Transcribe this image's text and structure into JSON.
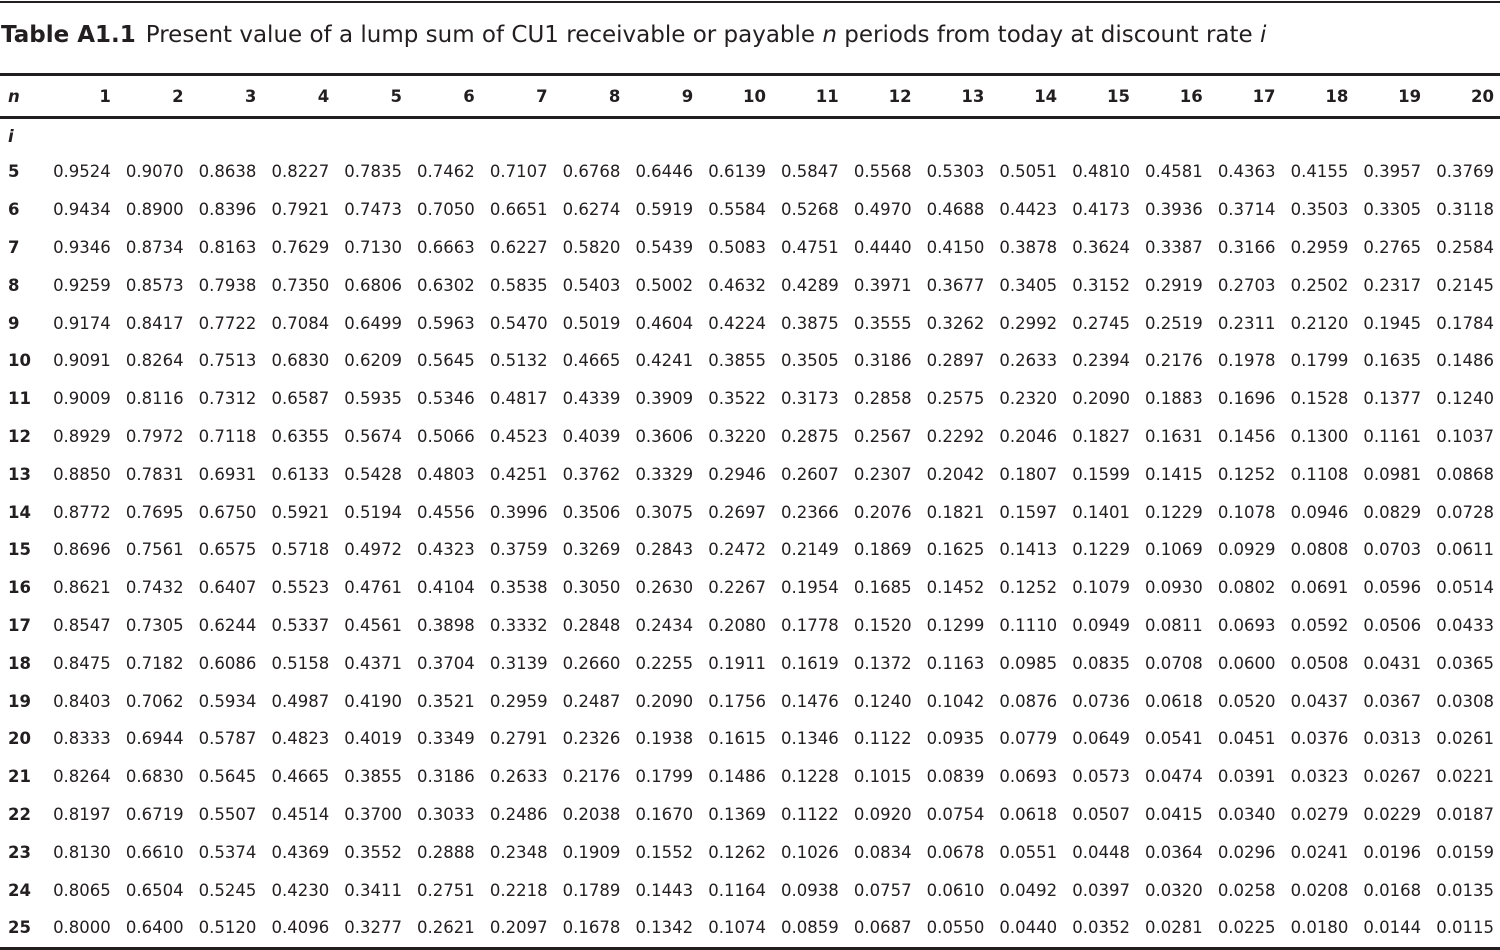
{
  "caption": {
    "label": "Table A1.1",
    "text_before_n": "Present value of a lump sum of CU1 receivable or payable ",
    "n_symbol": "n",
    "text_after_n": " periods from today at discount rate ",
    "i_symbol": "i"
  },
  "header": {
    "n_label": "n",
    "i_label": "i",
    "periods": [
      "1",
      "2",
      "3",
      "4",
      "5",
      "6",
      "7",
      "8",
      "9",
      "10",
      "11",
      "12",
      "13",
      "14",
      "15",
      "16",
      "17",
      "18",
      "19",
      "20"
    ]
  },
  "rows": [
    {
      "rate": "5",
      "values": [
        "0.9524",
        "0.9070",
        "0.8638",
        "0.8227",
        "0.7835",
        "0.7462",
        "0.7107",
        "0.6768",
        "0.6446",
        "0.6139",
        "0.5847",
        "0.5568",
        "0.5303",
        "0.5051",
        "0.4810",
        "0.4581",
        "0.4363",
        "0.4155",
        "0.3957",
        "0.3769"
      ]
    },
    {
      "rate": "6",
      "values": [
        "0.9434",
        "0.8900",
        "0.8396",
        "0.7921",
        "0.7473",
        "0.7050",
        "0.6651",
        "0.6274",
        "0.5919",
        "0.5584",
        "0.5268",
        "0.4970",
        "0.4688",
        "0.4423",
        "0.4173",
        "0.3936",
        "0.3714",
        "0.3503",
        "0.3305",
        "0.3118"
      ]
    },
    {
      "rate": "7",
      "values": [
        "0.9346",
        "0.8734",
        "0.8163",
        "0.7629",
        "0.7130",
        "0.6663",
        "0.6227",
        "0.5820",
        "0.5439",
        "0.5083",
        "0.4751",
        "0.4440",
        "0.4150",
        "0.3878",
        "0.3624",
        "0.3387",
        "0.3166",
        "0.2959",
        "0.2765",
        "0.2584"
      ]
    },
    {
      "rate": "8",
      "values": [
        "0.9259",
        "0.8573",
        "0.7938",
        "0.7350",
        "0.6806",
        "0.6302",
        "0.5835",
        "0.5403",
        "0.5002",
        "0.4632",
        "0.4289",
        "0.3971",
        "0.3677",
        "0.3405",
        "0.3152",
        "0.2919",
        "0.2703",
        "0.2502",
        "0.2317",
        "0.2145"
      ]
    },
    {
      "rate": "9",
      "values": [
        "0.9174",
        "0.8417",
        "0.7722",
        "0.7084",
        "0.6499",
        "0.5963",
        "0.5470",
        "0.5019",
        "0.4604",
        "0.4224",
        "0.3875",
        "0.3555",
        "0.3262",
        "0.2992",
        "0.2745",
        "0.2519",
        "0.2311",
        "0.2120",
        "0.1945",
        "0.1784"
      ]
    },
    {
      "rate": "10",
      "values": [
        "0.9091",
        "0.8264",
        "0.7513",
        "0.6830",
        "0.6209",
        "0.5645",
        "0.5132",
        "0.4665",
        "0.4241",
        "0.3855",
        "0.3505",
        "0.3186",
        "0.2897",
        "0.2633",
        "0.2394",
        "0.2176",
        "0.1978",
        "0.1799",
        "0.1635",
        "0.1486"
      ]
    },
    {
      "rate": "11",
      "values": [
        "0.9009",
        "0.8116",
        "0.7312",
        "0.6587",
        "0.5935",
        "0.5346",
        "0.4817",
        "0.4339",
        "0.3909",
        "0.3522",
        "0.3173",
        "0.2858",
        "0.2575",
        "0.2320",
        "0.2090",
        "0.1883",
        "0.1696",
        "0.1528",
        "0.1377",
        "0.1240"
      ]
    },
    {
      "rate": "12",
      "values": [
        "0.8929",
        "0.7972",
        "0.7118",
        "0.6355",
        "0.5674",
        "0.5066",
        "0.4523",
        "0.4039",
        "0.3606",
        "0.3220",
        "0.2875",
        "0.2567",
        "0.2292",
        "0.2046",
        "0.1827",
        "0.1631",
        "0.1456",
        "0.1300",
        "0.1161",
        "0.1037"
      ]
    },
    {
      "rate": "13",
      "values": [
        "0.8850",
        "0.7831",
        "0.6931",
        "0.6133",
        "0.5428",
        "0.4803",
        "0.4251",
        "0.3762",
        "0.3329",
        "0.2946",
        "0.2607",
        "0.2307",
        "0.2042",
        "0.1807",
        "0.1599",
        "0.1415",
        "0.1252",
        "0.1108",
        "0.0981",
        "0.0868"
      ]
    },
    {
      "rate": "14",
      "values": [
        "0.8772",
        "0.7695",
        "0.6750",
        "0.5921",
        "0.5194",
        "0.4556",
        "0.3996",
        "0.3506",
        "0.3075",
        "0.2697",
        "0.2366",
        "0.2076",
        "0.1821",
        "0.1597",
        "0.1401",
        "0.1229",
        "0.1078",
        "0.0946",
        "0.0829",
        "0.0728"
      ]
    },
    {
      "rate": "15",
      "values": [
        "0.8696",
        "0.7561",
        "0.6575",
        "0.5718",
        "0.4972",
        "0.4323",
        "0.3759",
        "0.3269",
        "0.2843",
        "0.2472",
        "0.2149",
        "0.1869",
        "0.1625",
        "0.1413",
        "0.1229",
        "0.1069",
        "0.0929",
        "0.0808",
        "0.0703",
        "0.0611"
      ]
    },
    {
      "rate": "16",
      "values": [
        "0.8621",
        "0.7432",
        "0.6407",
        "0.5523",
        "0.4761",
        "0.4104",
        "0.3538",
        "0.3050",
        "0.2630",
        "0.2267",
        "0.1954",
        "0.1685",
        "0.1452",
        "0.1252",
        "0.1079",
        "0.0930",
        "0.0802",
        "0.0691",
        "0.0596",
        "0.0514"
      ]
    },
    {
      "rate": "17",
      "values": [
        "0.8547",
        "0.7305",
        "0.6244",
        "0.5337",
        "0.4561",
        "0.3898",
        "0.3332",
        "0.2848",
        "0.2434",
        "0.2080",
        "0.1778",
        "0.1520",
        "0.1299",
        "0.1110",
        "0.0949",
        "0.0811",
        "0.0693",
        "0.0592",
        "0.0506",
        "0.0433"
      ]
    },
    {
      "rate": "18",
      "values": [
        "0.8475",
        "0.7182",
        "0.6086",
        "0.5158",
        "0.4371",
        "0.3704",
        "0.3139",
        "0.2660",
        "0.2255",
        "0.1911",
        "0.1619",
        "0.1372",
        "0.1163",
        "0.0985",
        "0.0835",
        "0.0708",
        "0.0600",
        "0.0508",
        "0.0431",
        "0.0365"
      ]
    },
    {
      "rate": "19",
      "values": [
        "0.8403",
        "0.7062",
        "0.5934",
        "0.4987",
        "0.4190",
        "0.3521",
        "0.2959",
        "0.2487",
        "0.2090",
        "0.1756",
        "0.1476",
        "0.1240",
        "0.1042",
        "0.0876",
        "0.0736",
        "0.0618",
        "0.0520",
        "0.0437",
        "0.0367",
        "0.0308"
      ]
    },
    {
      "rate": "20",
      "values": [
        "0.8333",
        "0.6944",
        "0.5787",
        "0.4823",
        "0.4019",
        "0.3349",
        "0.2791",
        "0.2326",
        "0.1938",
        "0.1615",
        "0.1346",
        "0.1122",
        "0.0935",
        "0.0779",
        "0.0649",
        "0.0541",
        "0.0451",
        "0.0376",
        "0.0313",
        "0.0261"
      ]
    },
    {
      "rate": "21",
      "values": [
        "0.8264",
        "0.6830",
        "0.5645",
        "0.4665",
        "0.3855",
        "0.3186",
        "0.2633",
        "0.2176",
        "0.1799",
        "0.1486",
        "0.1228",
        "0.1015",
        "0.0839",
        "0.0693",
        "0.0573",
        "0.0474",
        "0.0391",
        "0.0323",
        "0.0267",
        "0.0221"
      ]
    },
    {
      "rate": "22",
      "values": [
        "0.8197",
        "0.6719",
        "0.5507",
        "0.4514",
        "0.3700",
        "0.3033",
        "0.2486",
        "0.2038",
        "0.1670",
        "0.1369",
        "0.1122",
        "0.0920",
        "0.0754",
        "0.0618",
        "0.0507",
        "0.0415",
        "0.0340",
        "0.0279",
        "0.0229",
        "0.0187"
      ]
    },
    {
      "rate": "23",
      "values": [
        "0.8130",
        "0.6610",
        "0.5374",
        "0.4369",
        "0.3552",
        "0.2888",
        "0.2348",
        "0.1909",
        "0.1552",
        "0.1262",
        "0.1026",
        "0.0834",
        "0.0678",
        "0.0551",
        "0.0448",
        "0.0364",
        "0.0296",
        "0.0241",
        "0.0196",
        "0.0159"
      ]
    },
    {
      "rate": "24",
      "values": [
        "0.8065",
        "0.6504",
        "0.5245",
        "0.4230",
        "0.3411",
        "0.2751",
        "0.2218",
        "0.1789",
        "0.1443",
        "0.1164",
        "0.0938",
        "0.0757",
        "0.0610",
        "0.0492",
        "0.0397",
        "0.0320",
        "0.0258",
        "0.0208",
        "0.0168",
        "0.0135"
      ]
    },
    {
      "rate": "25",
      "values": [
        "0.8000",
        "0.6400",
        "0.5120",
        "0.4096",
        "0.3277",
        "0.2621",
        "0.2097",
        "0.1678",
        "0.1342",
        "0.1074",
        "0.0859",
        "0.0687",
        "0.0550",
        "0.0440",
        "0.0352",
        "0.0281",
        "0.0225",
        "0.0180",
        "0.0144",
        "0.0115"
      ]
    }
  ]
}
